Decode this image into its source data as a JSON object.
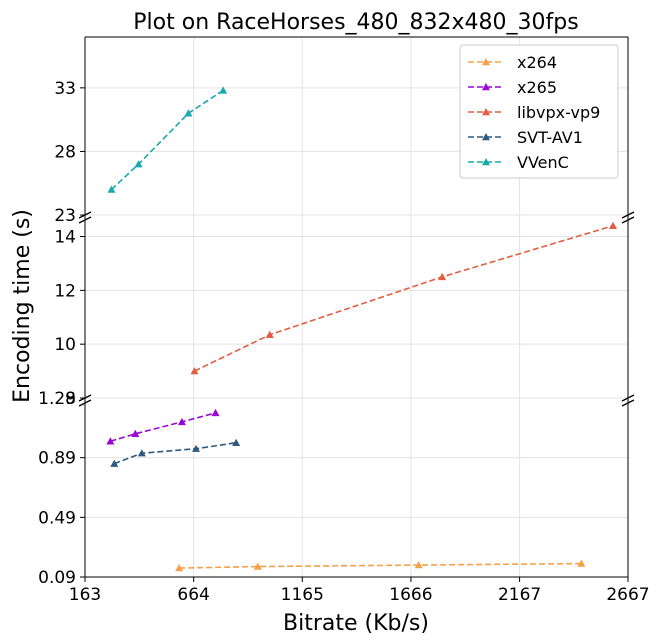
{
  "chart_data": {
    "type": "line",
    "title": "Plot on RaceHorses_480_832x480_30fps",
    "xlabel": "Bitrate (Kb/s)",
    "ylabel": "Encoding time (s)",
    "xlim": [
      163,
      2667
    ],
    "xticks": [
      "163",
      "664",
      "1165",
      "1666",
      "2167",
      "2667"
    ],
    "grid": true,
    "legend_position": "top-right",
    "broken_y_axis": true,
    "panels": [
      {
        "ylim": [
          23,
          37
        ],
        "yticks": [
          "23",
          "28",
          "33"
        ]
      },
      {
        "ylim": [
          8,
          14.8
        ],
        "yticks": [
          "8",
          "10",
          "12",
          "14"
        ]
      },
      {
        "ylim": [
          0.09,
          1.29
        ],
        "yticks": [
          "0.09",
          "0.49",
          "0.89",
          "1.29"
        ]
      }
    ],
    "series": [
      {
        "name": "x264",
        "color": "#f5a04a",
        "panel": 2,
        "marker": "triangle-up",
        "x": [
          597,
          960,
          1702,
          2452
        ],
        "y": [
          0.15,
          0.16,
          0.17,
          0.18
        ]
      },
      {
        "name": "x265",
        "color": "#9b05d6",
        "panel": 2,
        "marker": "triangle-up",
        "x": [
          280,
          395,
          610,
          765
        ],
        "y": [
          1.0,
          1.05,
          1.13,
          1.19
        ]
      },
      {
        "name": "libvpx-vp9",
        "color": "#e35c40",
        "panel": 1,
        "marker": "triangle-up",
        "x": [
          668,
          1015,
          1810,
          2598
        ],
        "y": [
          9.0,
          10.35,
          12.5,
          14.4
        ]
      },
      {
        "name": "SVT-AV1",
        "color": "#2d5a7e",
        "panel": 2,
        "marker": "triangle-up",
        "x": [
          298,
          425,
          675,
          860
        ],
        "y": [
          0.85,
          0.92,
          0.95,
          0.99
        ]
      },
      {
        "name": "VVenC",
        "color": "#18a9ad",
        "panel": 0,
        "marker": "triangle-up",
        "x": [
          285,
          410,
          640,
          800
        ],
        "y": [
          25.0,
          27.0,
          31.0,
          32.8
        ]
      }
    ]
  }
}
